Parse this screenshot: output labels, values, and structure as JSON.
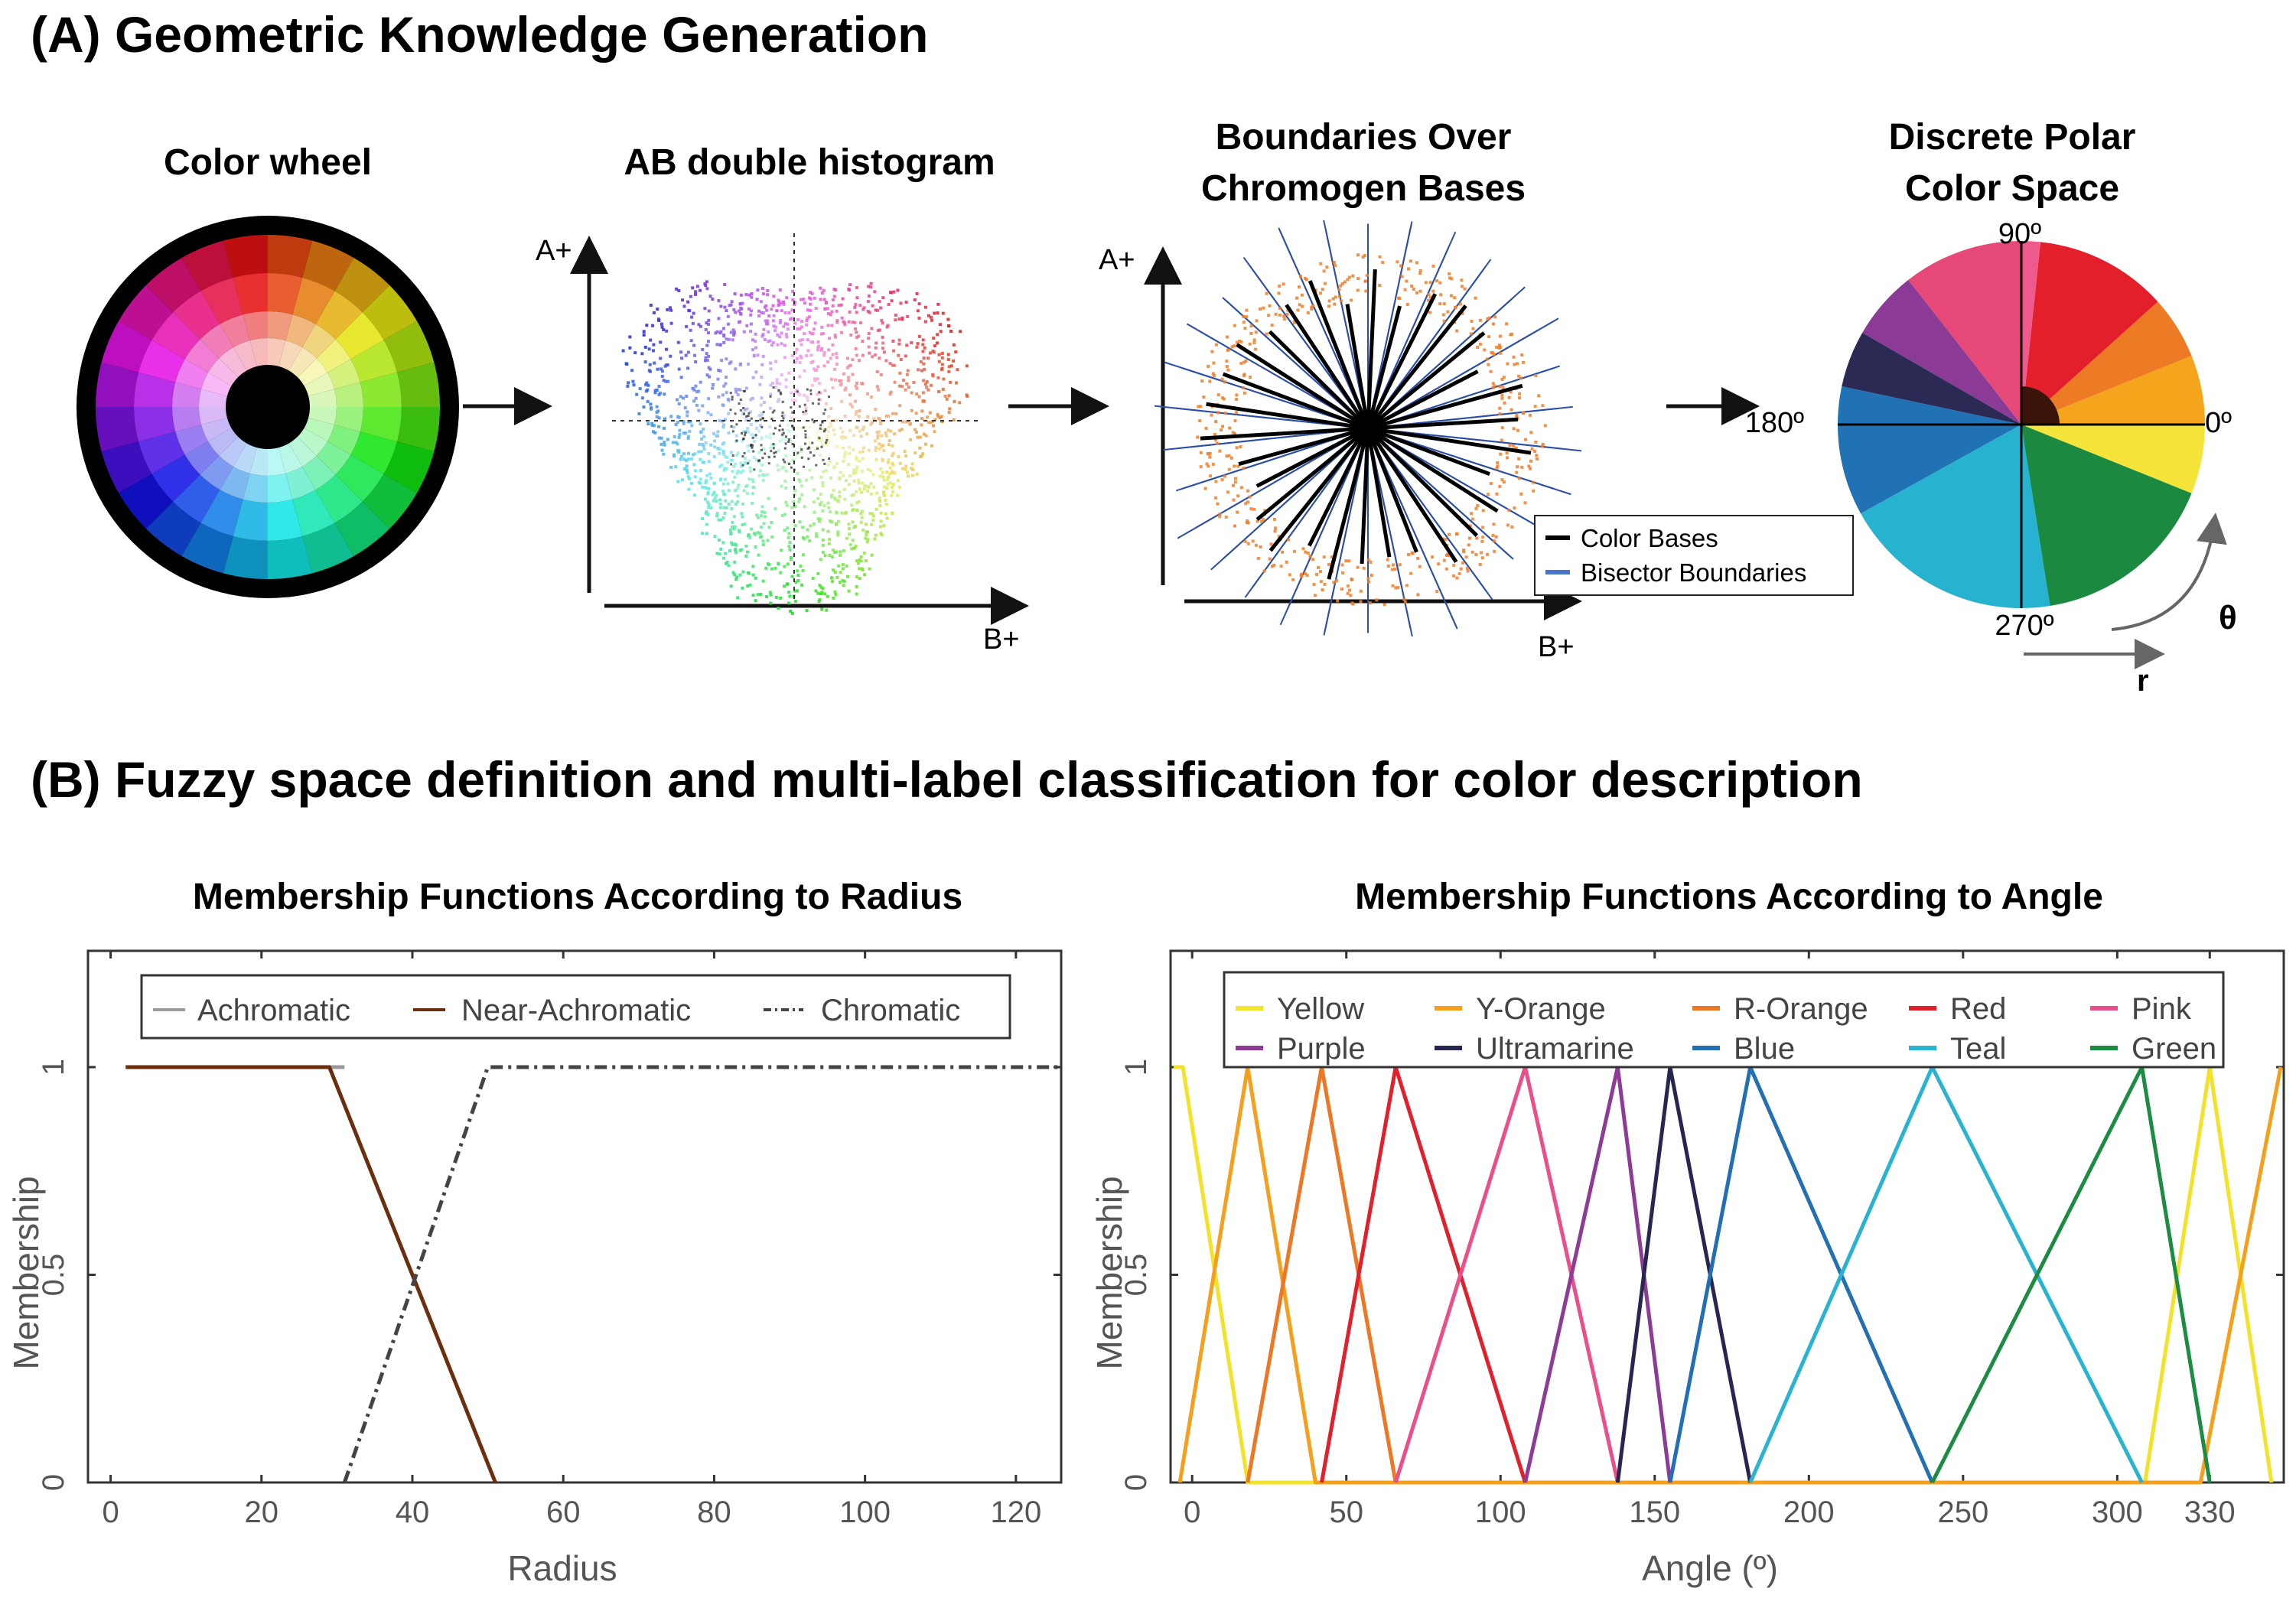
{
  "section_a": {
    "title": "(A) Geometric Knowledge Generation",
    "panel_colorwheel": {
      "title": "Color wheel"
    },
    "panel_histogram": {
      "title": "AB double histogram",
      "axis_a": "A+",
      "axis_b": "B+"
    },
    "panel_boundaries": {
      "title_line1": "Boundaries Over",
      "title_line2": "Chromogen Bases",
      "axis_a": "A+",
      "axis_b": "B+",
      "legend": [
        "Color Bases",
        "Bisector Boundaries"
      ]
    },
    "panel_polar": {
      "title_line1": "Discrete Polar",
      "title_line2": "Color Space",
      "label_90": "90º",
      "label_180": "180º",
      "label_0": "0º",
      "label_270": "270º",
      "label_theta": "θ",
      "label_r": "r",
      "sectors": [
        {
          "name": "Yellow",
          "color": "#f5e53a",
          "start": 0,
          "end": -22
        },
        {
          "name": "Y-Orange",
          "color": "#f4a51c",
          "start": 0,
          "end": 22
        },
        {
          "name": "R-Orange",
          "color": "#ed7a25",
          "start": 22,
          "end": 42
        },
        {
          "name": "Red",
          "color": "#e21f2a",
          "start": 42,
          "end": 84
        },
        {
          "name": "Pink-light",
          "color": "#ee5a8c",
          "start": 84,
          "end": 90
        },
        {
          "name": "Pink",
          "color": "#e64878",
          "start": 90,
          "end": 128
        },
        {
          "name": "Purple",
          "color": "#8b3b96",
          "start": 128,
          "end": 150
        },
        {
          "name": "Ultramarine",
          "color": "#2b2a55",
          "start": 150,
          "end": 168
        },
        {
          "name": "Blue",
          "color": "#2171b5",
          "start": 168,
          "end": 209
        },
        {
          "name": "Teal",
          "color": "#27b2cf",
          "start": 209,
          "end": 279
        },
        {
          "name": "Green",
          "color": "#1b8a40",
          "start": 279,
          "end": 338
        }
      ]
    }
  },
  "section_b": {
    "title": "(B) Fuzzy space definition and multi-label classification for color description"
  },
  "chart_data": [
    {
      "type": "line",
      "title": "Membership Functions According to Radius",
      "xlabel": "Radius",
      "ylabel": "Membership",
      "xlim": [
        -3,
        126
      ],
      "ylim": [
        0,
        1.28
      ],
      "xticks": [
        "0",
        "20",
        "40",
        "60",
        "80",
        "100",
        "120"
      ],
      "yticks": [
        "0",
        "0.5",
        "1"
      ],
      "series": [
        {
          "name": "Achromatic",
          "color": "#9a9a9a",
          "dash": "solid",
          "x": [
            2,
            28,
            31
          ],
          "y": [
            1,
            1,
            1
          ]
        },
        {
          "name": "Near-Achromatic",
          "color": "#6b2f10",
          "dash": "solid",
          "x": [
            2,
            29,
            51
          ],
          "y": [
            1,
            1,
            0
          ]
        },
        {
          "name": "Chromatic",
          "color": "#444444",
          "dash": "dashdot",
          "x": [
            31,
            50,
            126
          ],
          "y": [
            0,
            1,
            1
          ]
        }
      ]
    },
    {
      "type": "line",
      "title": "Membership Functions According to Angle",
      "xlabel": "Angle (º)",
      "ylabel": "Membership",
      "xlim": [
        -7,
        354
      ],
      "ylim": [
        0,
        1.28
      ],
      "xticks": [
        "0",
        "50",
        "100",
        "150",
        "200",
        "250",
        "300",
        "330"
      ],
      "yticks": [
        "0",
        "0.5",
        "1"
      ],
      "series": [
        {
          "name": "Yellow",
          "color": "#f2e22a",
          "x": [
            -6,
            -4,
            -3,
            18,
            309,
            330,
            350
          ],
          "y": [
            1,
            1,
            1,
            0,
            0,
            1,
            0
          ]
        },
        {
          "name": "Y-Orange",
          "color": "#f4a01c",
          "x": [
            -4,
            18,
            40,
            327,
            353
          ],
          "y": [
            0,
            1,
            0,
            0,
            1
          ]
        },
        {
          "name": "R-Orange",
          "color": "#ec7724",
          "x": [
            18,
            42,
            66
          ],
          "y": [
            0,
            1,
            0
          ]
        },
        {
          "name": "Red",
          "color": "#e0202b",
          "x": [
            42,
            66,
            108
          ],
          "y": [
            0,
            1,
            0
          ]
        },
        {
          "name": "Pink",
          "color": "#e9508a",
          "x": [
            66,
            108,
            138
          ],
          "y": [
            0,
            1,
            0
          ]
        },
        {
          "name": "Purple",
          "color": "#8e3a97",
          "x": [
            108,
            138,
            155
          ],
          "y": [
            0,
            1,
            0
          ]
        },
        {
          "name": "Ultramarine",
          "color": "#272552",
          "x": [
            138,
            155,
            181
          ],
          "y": [
            0,
            1,
            0
          ]
        },
        {
          "name": "Blue",
          "color": "#2270b3",
          "x": [
            155,
            181,
            240
          ],
          "y": [
            0,
            1,
            0
          ]
        },
        {
          "name": "Teal",
          "color": "#2ab3d1",
          "x": [
            181,
            240,
            308
          ],
          "y": [
            0,
            1,
            0
          ]
        },
        {
          "name": "Green",
          "color": "#1d8c43",
          "x": [
            240,
            308,
            330
          ],
          "y": [
            0,
            1,
            0
          ]
        }
      ]
    }
  ]
}
